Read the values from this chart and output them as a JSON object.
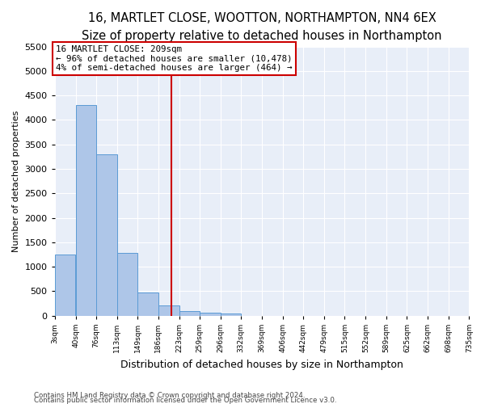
{
  "title1": "16, MARTLET CLOSE, WOOTTON, NORTHAMPTON, NN4 6EX",
  "title2": "Size of property relative to detached houses in Northampton",
  "xlabel": "Distribution of detached houses by size in Northampton",
  "ylabel": "Number of detached properties",
  "bin_edges": [
    3,
    40,
    76,
    113,
    149,
    186,
    223,
    259,
    296,
    332,
    369,
    406,
    442,
    479,
    515,
    552,
    589,
    625,
    662,
    698,
    735
  ],
  "bin_heights": [
    1250,
    4300,
    3300,
    1280,
    480,
    210,
    90,
    60,
    50,
    0,
    0,
    0,
    0,
    0,
    0,
    0,
    0,
    0,
    0,
    0
  ],
  "bar_color": "#aec6e8",
  "bar_edge_color": "#5b9bd5",
  "vline_x": 209,
  "vline_color": "#cc0000",
  "annotation_line1": "16 MARTLET CLOSE: 209sqm",
  "annotation_line2": "← 96% of detached houses are smaller (10,478)",
  "annotation_line3": "4% of semi-detached houses are larger (464) →",
  "annotation_box_color": "#cc0000",
  "annotation_bg": "#ffffff",
  "ylim": [
    0,
    5500
  ],
  "yticks": [
    0,
    500,
    1000,
    1500,
    2000,
    2500,
    3000,
    3500,
    4000,
    4500,
    5000,
    5500
  ],
  "background_color": "#e8eef8",
  "footer1": "Contains HM Land Registry data © Crown copyright and database right 2024.",
  "footer2": "Contains public sector information licensed under the Open Government Licence v3.0.",
  "title1_fontsize": 10.5,
  "title2_fontsize": 9.5,
  "tick_labels": [
    "3sqm",
    "40sqm",
    "76sqm",
    "113sqm",
    "149sqm",
    "186sqm",
    "223sqm",
    "259sqm",
    "296sqm",
    "332sqm",
    "369sqm",
    "406sqm",
    "442sqm",
    "479sqm",
    "515sqm",
    "552sqm",
    "589sqm",
    "625sqm",
    "662sqm",
    "698sqm",
    "735sqm"
  ]
}
